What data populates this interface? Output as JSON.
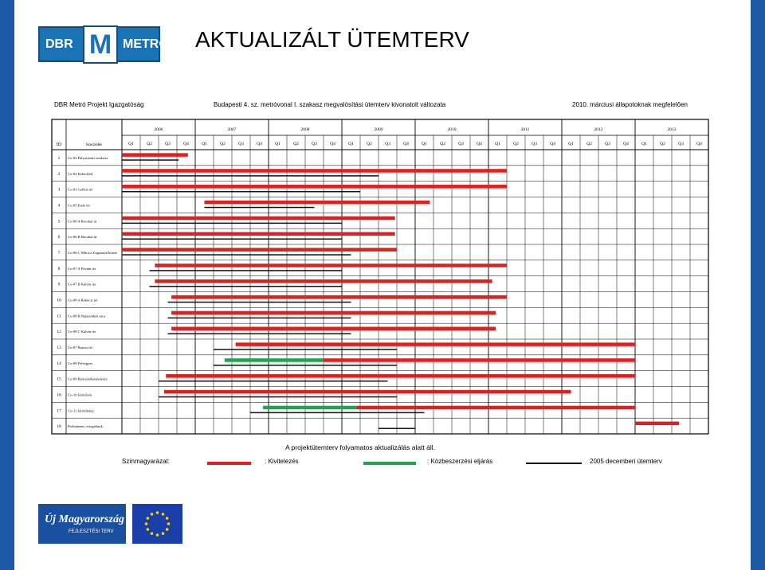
{
  "slide": {
    "title": "AKTUALIZÁLT ÜTEMTERV",
    "logo": {
      "left": "DBR",
      "mid": "M",
      "right": "METRO"
    }
  },
  "doc": {
    "org": "DBR Metró Projekt Igazgatóság",
    "subtitle": "Budapesti 4. sz. metróvonal I. szakasz megvalósítási ütemterv kivonatolt változata",
    "status": "2010. márciusi állapotoknak megfelelően",
    "footnote": "A projektütemterv folyamatos aktualizálás alatt áll.",
    "columns": {
      "id": "ID",
      "name": "Szerződés"
    },
    "years": [
      "2006",
      "2007",
      "2008",
      "2009",
      "2010",
      "2011",
      "2012",
      "2013"
    ],
    "quarters": [
      "Q1",
      "Q2",
      "Q3",
      "Q4"
    ],
    "rows": [
      {
        "id": "1",
        "name": "Co-02 Pályavasúti rendszer"
      },
      {
        "id": "2",
        "name": "Co-02 Kelenföld"
      },
      {
        "id": "3",
        "name": "Co-03 Gellért tér"
      },
      {
        "id": "4",
        "name": "Co-05 Etele tér"
      },
      {
        "id": "5",
        "name": "Co-06 A Bocskai út"
      },
      {
        "id": "6",
        "name": "Co-06 B Bocskai út"
      },
      {
        "id": "7",
        "name": "Co-06 C Móricz Zsigmond körtér"
      },
      {
        "id": "8",
        "name": "Co-07 A Fővám tér"
      },
      {
        "id": "9",
        "name": "Co-07 B Kálvin tér"
      },
      {
        "id": "10",
        "name": "Co-08 A Rákóczi tér"
      },
      {
        "id": "11",
        "name": "Co-08 B Népszínház utca"
      },
      {
        "id": "12",
        "name": "Co-08 C Kálvin tér"
      },
      {
        "id": "13",
        "name": "Co-07 Baross tér"
      },
      {
        "id": "14",
        "name": "Co-08 Felvégyes"
      },
      {
        "id": "15",
        "name": "Co-09 Biztosítóberendezés"
      },
      {
        "id": "16",
        "name": "Co-10 Járművek"
      },
      {
        "id": "17",
        "name": "Co-11 Járműtelep"
      },
      {
        "id": "18",
        "name": "Próbaüzem, vizsgálatok"
      }
    ],
    "legend": {
      "label": "Színmagyarázat:",
      "items": [
        {
          "text": ": Kivitelezés",
          "color": "#e0201e"
        },
        {
          "text": ": Közbeszerzési eljárás",
          "color": "#1fa550"
        },
        {
          "text": "2005 decemberi ütemterv",
          "color": "#111111"
        }
      ]
    }
  },
  "gantt": {
    "start": "2006-Q1",
    "unit": "quarter",
    "bars": [
      {
        "row": 1,
        "kind": "red",
        "from": 0.0,
        "to": 3.6
      },
      {
        "row": 1,
        "kind": "black",
        "from": 0.0,
        "to": 3.1
      },
      {
        "row": 2,
        "kind": "red",
        "from": 0.0,
        "to": 21.0
      },
      {
        "row": 2,
        "kind": "black",
        "from": 0.0,
        "to": 14.0
      },
      {
        "row": 3,
        "kind": "red",
        "from": 0.0,
        "to": 21.0
      },
      {
        "row": 3,
        "kind": "black",
        "from": 0.0,
        "to": 13.0
      },
      {
        "row": 4,
        "kind": "red",
        "from": 4.5,
        "to": 16.8
      },
      {
        "row": 4,
        "kind": "black",
        "from": 4.5,
        "to": 10.5
      },
      {
        "row": 5,
        "kind": "red",
        "from": 0.0,
        "to": 14.9
      },
      {
        "row": 5,
        "kind": "black",
        "from": 0.0,
        "to": 12.0
      },
      {
        "row": 6,
        "kind": "red",
        "from": 0.0,
        "to": 14.9
      },
      {
        "row": 6,
        "kind": "black",
        "from": 0.0,
        "to": 12.0
      },
      {
        "row": 7,
        "kind": "red",
        "from": 0.0,
        "to": 15.0
      },
      {
        "row": 7,
        "kind": "black",
        "from": 0.0,
        "to": 12.5
      },
      {
        "row": 8,
        "kind": "red",
        "from": 1.8,
        "to": 21.0
      },
      {
        "row": 8,
        "kind": "black",
        "from": 1.5,
        "to": 12.0
      },
      {
        "row": 9,
        "kind": "red",
        "from": 1.8,
        "to": 20.2
      },
      {
        "row": 9,
        "kind": "black",
        "from": 1.5,
        "to": 12.0
      },
      {
        "row": 10,
        "kind": "red",
        "from": 2.7,
        "to": 21.0
      },
      {
        "row": 10,
        "kind": "black",
        "from": 2.5,
        "to": 12.5
      },
      {
        "row": 11,
        "kind": "red",
        "from": 2.7,
        "to": 20.4
      },
      {
        "row": 11,
        "kind": "black",
        "from": 2.5,
        "to": 12.5
      },
      {
        "row": 12,
        "kind": "red",
        "from": 2.7,
        "to": 20.4
      },
      {
        "row": 12,
        "kind": "black",
        "from": 2.5,
        "to": 12.5
      },
      {
        "row": 13,
        "kind": "red",
        "from": 6.2,
        "to": 28.0
      },
      {
        "row": 13,
        "kind": "black",
        "from": 5.0,
        "to": 15.0
      },
      {
        "row": 14,
        "kind": "green",
        "from": 5.6,
        "to": 11.0
      },
      {
        "row": 14,
        "kind": "red",
        "from": 11.0,
        "to": 28.0
      },
      {
        "row": 14,
        "kind": "black",
        "from": 5.0,
        "to": 15.0
      },
      {
        "row": 15,
        "kind": "red",
        "from": 2.4,
        "to": 28.0
      },
      {
        "row": 15,
        "kind": "black",
        "from": 2.0,
        "to": 14.5
      },
      {
        "row": 16,
        "kind": "red",
        "from": 2.3,
        "to": 24.5
      },
      {
        "row": 16,
        "kind": "black",
        "from": 2.0,
        "to": 15.0
      },
      {
        "row": 17,
        "kind": "green",
        "from": 7.7,
        "to": 12.8
      },
      {
        "row": 17,
        "kind": "red",
        "from": 12.8,
        "to": 28.0
      },
      {
        "row": 17,
        "kind": "black",
        "from": 7.0,
        "to": 16.5
      },
      {
        "row": 18,
        "kind": "red",
        "from": 28.0,
        "to": 30.4
      },
      {
        "row": 18,
        "kind": "black",
        "from": 14.0,
        "to": 16.0
      }
    ]
  },
  "footer": {
    "logo1": "Új Magyarország",
    "logo1_sub": "FEJLESZTÉSI TERV"
  }
}
